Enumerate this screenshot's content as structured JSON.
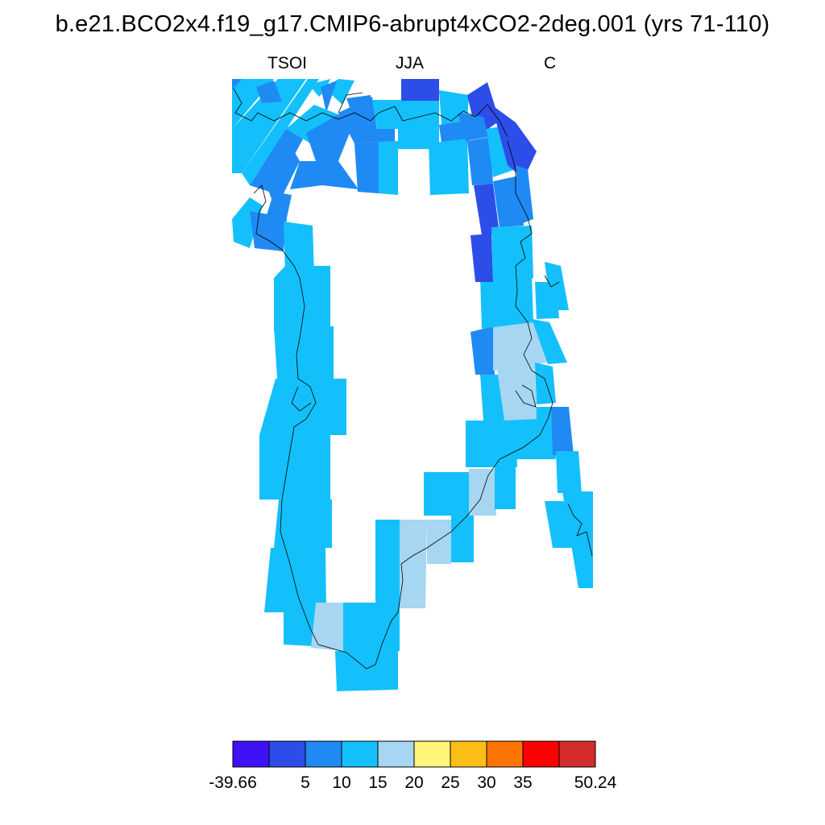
{
  "title": "b.e21.BCO2x4.f19_g17.CMIP6-abrupt4xCO2-2deg.001 (yrs 71-110)",
  "subtitle": {
    "left": "TSOI",
    "center": "JJA",
    "right": "C"
  },
  "colors": {
    "violet": "#3f12f6",
    "dark_blue": "#2d4de8",
    "mid_blue": "#1f8af4",
    "cyan": "#14c0fb",
    "pale_blue": "#a6d6f2",
    "pale_yellow": "#fff57a",
    "gold": "#fdbe17",
    "orange": "#fd7403",
    "red": "#fc0103",
    "dark_red": "#d32d2d"
  },
  "colorbar": {
    "colors": [
      "#3f12f6",
      "#2d4de8",
      "#1f8af4",
      "#14c0fb",
      "#a6d6f2",
      "#fff57a",
      "#fdbe17",
      "#fd7403",
      "#fc0103",
      "#d32d2d"
    ],
    "labels": [
      "-39.66",
      "5",
      "10",
      "15",
      "20",
      "25",
      "30",
      "35",
      "50.24"
    ]
  }
}
